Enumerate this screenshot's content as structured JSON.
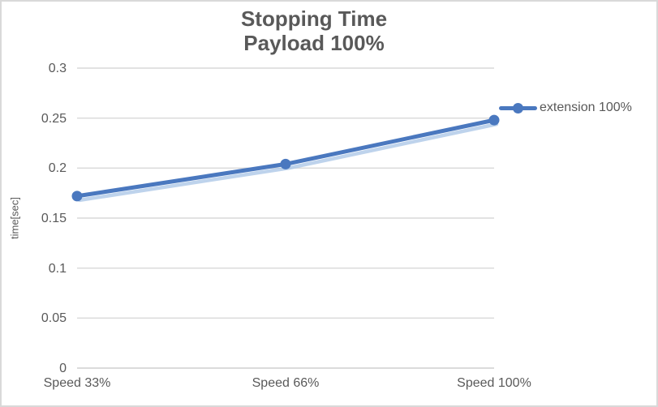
{
  "chart": {
    "title_line1": "Stopping Time",
    "title_line2": "Payload 100%",
    "ylabel": "time[sec]",
    "legend": {
      "label": "extension 100%"
    },
    "colors": {
      "series": "#4a78bf",
      "series_shadow": "#a8c4e5",
      "grid": "#d9d9d9",
      "axis": "#cfcfcf",
      "text": "#595959",
      "border": "#d9d9d9",
      "background": "#ffffff"
    }
  },
  "chart_data": {
    "type": "line",
    "title": "Stopping Time — Payload 100%",
    "categories": [
      "Speed 33%",
      "Speed 66%",
      "Speed 100%"
    ],
    "series": [
      {
        "name": "extension 100%",
        "values": [
          0.172,
          0.204,
          0.248
        ]
      }
    ],
    "xlabel": "",
    "ylabel": "time[sec]",
    "ylim": [
      0,
      0.3
    ],
    "ytick_step": 0.05,
    "ytick_labels": [
      "0",
      "0.05",
      "0.1",
      "0.15",
      "0.2",
      "0.25",
      "0.3"
    ],
    "grid": true,
    "marker": "circle",
    "legend_position": "right-overlay",
    "category_axis_mode": "on-tick-marks"
  }
}
